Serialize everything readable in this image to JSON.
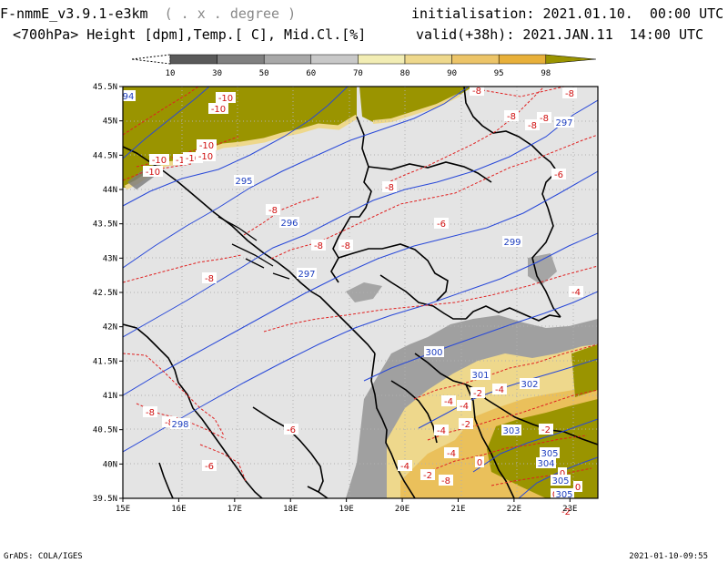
{
  "header": {
    "model": "F-nmmE_v3.9.1-e3km",
    "units": "( . x . degree )",
    "fields": "<700hPa> Height [dpm],Temp.[ C], Mid.Cl.[%]",
    "init_label": "initialisation:",
    "init_value": "2021.01.10.  00:00 UTC",
    "valid_label": "valid(+38h):",
    "valid_value": "2021.JAN.11  14:00 UTC"
  },
  "color_scale": {
    "labels": [
      "10",
      "30",
      "50",
      "60",
      "70",
      "80",
      "90",
      "95",
      "98"
    ],
    "colors": [
      "#ffffff",
      "#5a5a5a",
      "#808080",
      "#a8a8a8",
      "#c8c8c8",
      "#f2edb4",
      "#eed88c",
      "#ecc468",
      "#e8b03a",
      "#9a9400"
    ]
  },
  "axes": {
    "lat_labels": [
      "45.5N",
      "45N",
      "44.5N",
      "44N",
      "43.5N",
      "43N",
      "42.5N",
      "42N",
      "41.5N",
      "41N",
      "40.5N",
      "40N",
      "39.5N"
    ],
    "lon_labels": [
      "15E",
      "16E",
      "17E",
      "18E",
      "19E",
      "20E",
      "21E",
      "22E",
      "23E"
    ]
  },
  "contours": {
    "height_labels": [
      "94",
      "295",
      "296",
      "297",
      "299",
      "297",
      "300",
      "301",
      "302",
      "303",
      "304",
      "305",
      "305",
      "305",
      "298"
    ],
    "temp_labels": [
      "-10",
      "-10",
      "-10",
      "-10",
      "-1",
      "-10",
      "-10",
      "-10",
      "-8",
      "-8",
      "-8",
      "-8",
      "-8",
      "-8",
      "-8",
      "-6",
      "-8",
      "-8",
      "-6",
      "-8",
      "-8",
      "-8",
      "-4",
      "-6",
      "-4",
      "-2",
      "-4",
      "-4",
      "-2",
      "-4",
      "-2",
      "-4",
      "-4",
      "0",
      "-2",
      "0",
      "0",
      "0",
      "-2",
      "-8",
      "-6"
    ]
  },
  "footer": {
    "left": "GrADS: COLA/IGES",
    "right": "2021-01-10-09:55"
  }
}
